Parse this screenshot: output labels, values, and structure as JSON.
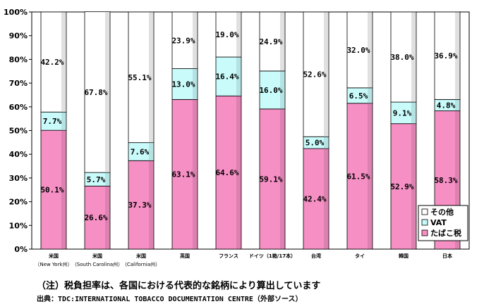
{
  "chart_data": {
    "type": "bar",
    "stacked": true,
    "percent": true,
    "categories": [
      {
        "line1": "米国",
        "line2": "（New York州）"
      },
      {
        "line1": "米国",
        "line2": "（South Carolina州）"
      },
      {
        "line1": "米国",
        "line2": "（California州）"
      },
      {
        "line1": "英国",
        "line2": ""
      },
      {
        "line1": "フランス",
        "line2": ""
      },
      {
        "line1": "ドイツ（1箱/17本）",
        "line2": ""
      },
      {
        "line1": "台湾",
        "line2": ""
      },
      {
        "line1": "タイ",
        "line2": ""
      },
      {
        "line1": "韓国",
        "line2": ""
      },
      {
        "line1": "日本",
        "line2": ""
      }
    ],
    "series": [
      {
        "name": "たばこ税",
        "color": "#f58fc4",
        "values": [
          50.1,
          26.6,
          37.3,
          63.1,
          64.6,
          59.1,
          42.4,
          61.5,
          52.9,
          58.3
        ],
        "labels": [
          "50.1%",
          "26.6%",
          "37.3%",
          "63.1%",
          "64.6%",
          "59.1%",
          "42.4%",
          "61.5%",
          "52.9%",
          "58.3%"
        ]
      },
      {
        "name": "VAT",
        "color": "#c9fbfb",
        "values": [
          7.7,
          5.7,
          7.6,
          13.0,
          16.4,
          16.0,
          5.0,
          6.5,
          9.1,
          4.8
        ],
        "labels": [
          "7.7%",
          "5.7%",
          "7.6%",
          "13.0%",
          "16.4%",
          "16.0%",
          "5.0%",
          "6.5%",
          "9.1%",
          "4.8%"
        ]
      },
      {
        "name": "その他",
        "color": "#ffffff",
        "values": [
          42.2,
          67.8,
          55.1,
          23.9,
          19.0,
          24.9,
          52.6,
          32.0,
          38.0,
          36.9
        ],
        "labels": [
          "42.2%",
          "67.8%",
          "55.1%",
          "23.9%",
          "19.0%",
          "24.9%",
          "52.6%",
          "32.0%",
          "38.0%",
          "36.9%"
        ]
      }
    ],
    "y_ticks": [
      "0%",
      "10%",
      "20%",
      "30%",
      "40%",
      "50%",
      "60%",
      "70%",
      "80%",
      "90%",
      "100%"
    ],
    "ylim": [
      0,
      100
    ],
    "grid": false,
    "legend": {
      "placement": "bottom-right",
      "entries": [
        "その他",
        "VAT",
        "たばこ税"
      ]
    }
  },
  "note": "（注）税負担率は、各国における代表的な銘柄により算出しています",
  "source": "出典：TDC:INTERNATIONAL TOBACCO DOCUMENTATION CENTRE（外部ソース）"
}
